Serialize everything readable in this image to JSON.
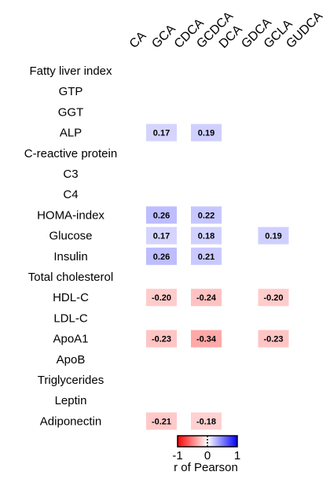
{
  "chart_data": {
    "type": "heatmap",
    "columns": [
      "CA",
      "GCA",
      "CDCA",
      "GCDCA",
      "DCA",
      "GDCA",
      "GCLA",
      "GUDCA"
    ],
    "rows": [
      "Fatty liver index",
      "GTP",
      "GGT",
      "ALP",
      "C-reactive protein",
      "C3",
      "C4",
      "HOMA-index",
      "Glucose",
      "Insulin",
      "Total cholesterol",
      "HDL-C",
      "LDL-C",
      "ApoA1",
      "ApoB",
      "Triglycerides",
      "Leptin",
      "Adiponectin"
    ],
    "values": [
      [
        null,
        null,
        null,
        null,
        null,
        null,
        null,
        null
      ],
      [
        null,
        null,
        null,
        null,
        null,
        null,
        null,
        null
      ],
      [
        null,
        null,
        null,
        null,
        null,
        null,
        null,
        null
      ],
      [
        null,
        0.17,
        null,
        0.19,
        null,
        null,
        null,
        null
      ],
      [
        null,
        null,
        null,
        null,
        null,
        null,
        null,
        null
      ],
      [
        null,
        null,
        null,
        null,
        null,
        null,
        null,
        null
      ],
      [
        null,
        null,
        null,
        null,
        null,
        null,
        null,
        null
      ],
      [
        null,
        0.26,
        null,
        0.22,
        null,
        null,
        null,
        null
      ],
      [
        null,
        0.17,
        null,
        0.18,
        null,
        null,
        0.19,
        null
      ],
      [
        null,
        0.26,
        null,
        0.21,
        null,
        null,
        null,
        null
      ],
      [
        null,
        null,
        null,
        null,
        null,
        null,
        null,
        null
      ],
      [
        null,
        -0.2,
        null,
        -0.24,
        null,
        null,
        -0.2,
        null
      ],
      [
        null,
        null,
        null,
        null,
        null,
        null,
        null,
        null
      ],
      [
        null,
        -0.23,
        null,
        -0.34,
        null,
        null,
        -0.23,
        null
      ],
      [
        null,
        null,
        null,
        null,
        null,
        null,
        null,
        null
      ],
      [
        null,
        null,
        null,
        null,
        null,
        null,
        null,
        null
      ],
      [
        null,
        null,
        null,
        null,
        null,
        null,
        null,
        null
      ],
      [
        null,
        -0.21,
        null,
        -0.18,
        null,
        null,
        null,
        null
      ]
    ],
    "colorscale": {
      "min": -1,
      "max": 1,
      "low_color": "#ff0000",
      "mid_color": "#ffffff",
      "high_color": "#0000ff",
      "tick_labels": [
        "-1",
        "0",
        "1"
      ],
      "label": "r of Pearson"
    }
  }
}
